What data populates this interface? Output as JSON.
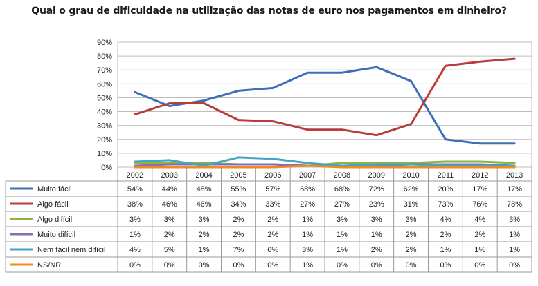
{
  "chart_data": {
    "type": "line",
    "title": "Qual o grau de dificuldade na utilização das notas de euro nos pagamentos em dinheiro?",
    "categories": [
      "2002",
      "2003",
      "2004",
      "2005",
      "2006",
      "2007",
      "2008",
      "2009",
      "2010",
      "2011",
      "2012",
      "2013"
    ],
    "ylim": [
      0,
      90
    ],
    "yticks": [
      "0%",
      "10%",
      "20%",
      "30%",
      "40%",
      "50%",
      "60%",
      "70%",
      "80%",
      "90%"
    ],
    "grid": true,
    "legend": "data-table-below",
    "series": [
      {
        "name": "Muito fácil",
        "color": "#3c6fb6",
        "values": [
          54,
          44,
          48,
          55,
          57,
          68,
          68,
          72,
          62,
          20,
          17,
          17
        ],
        "labels": [
          "54%",
          "44%",
          "48%",
          "55%",
          "57%",
          "68%",
          "68%",
          "72%",
          "62%",
          "20%",
          "17%",
          "17%"
        ]
      },
      {
        "name": "Algo fácil",
        "color": "#b83c3a",
        "values": [
          38,
          46,
          46,
          34,
          33,
          27,
          27,
          23,
          31,
          73,
          76,
          78
        ],
        "labels": [
          "38%",
          "46%",
          "46%",
          "34%",
          "33%",
          "27%",
          "27%",
          "23%",
          "31%",
          "73%",
          "76%",
          "78%"
        ]
      },
      {
        "name": "Algo difícil",
        "color": "#8fb43c",
        "values": [
          3,
          3,
          3,
          2,
          2,
          1,
          3,
          3,
          3,
          4,
          4,
          3
        ],
        "labels": [
          "3%",
          "3%",
          "3%",
          "2%",
          "2%",
          "1%",
          "3%",
          "3%",
          "3%",
          "4%",
          "4%",
          "3%"
        ]
      },
      {
        "name": "Muito difícil",
        "color": "#8b6cb0",
        "values": [
          1,
          2,
          2,
          2,
          2,
          1,
          1,
          1,
          2,
          2,
          2,
          1
        ],
        "labels": [
          "1%",
          "2%",
          "2%",
          "2%",
          "2%",
          "1%",
          "1%",
          "1%",
          "2%",
          "2%",
          "2%",
          "1%"
        ]
      },
      {
        "name": "Nem fácil nem difícil",
        "color": "#3fa9c4",
        "values": [
          4,
          5,
          1,
          7,
          6,
          3,
          1,
          2,
          2,
          1,
          1,
          1
        ],
        "labels": [
          "4%",
          "5%",
          "1%",
          "7%",
          "6%",
          "3%",
          "1%",
          "2%",
          "2%",
          "1%",
          "1%",
          "1%"
        ]
      },
      {
        "name": "NS/NR",
        "color": "#f08a24",
        "values": [
          0,
          0,
          0,
          0,
          0,
          1,
          0,
          0,
          0,
          0,
          0,
          0
        ],
        "labels": [
          "0%",
          "0%",
          "0%",
          "0%",
          "0%",
          "1%",
          "0%",
          "0%",
          "0%",
          "0%",
          "0%",
          "0%"
        ]
      }
    ]
  }
}
